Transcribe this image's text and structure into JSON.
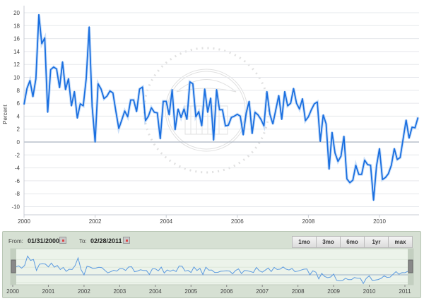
{
  "chart_data": {
    "type": "line",
    "ylabel": "Percent",
    "ylim": [
      -11,
      21
    ],
    "yticks": [
      -10,
      -8,
      -6,
      -4,
      -2,
      0,
      2,
      4,
      6,
      8,
      10,
      12,
      14,
      16,
      18,
      20
    ],
    "xticks": [
      "2000",
      "2002",
      "2004",
      "2006",
      "2008",
      "2010"
    ],
    "start": "2000-01",
    "frequency": "monthly",
    "series": [
      {
        "name": "Percent",
        "color": "#1a6fe0",
        "values": [
          5.8,
          8.3,
          9.5,
          7.0,
          9.8,
          19.7,
          15.2,
          16.1,
          4.6,
          11.2,
          11.6,
          11.3,
          8.4,
          12.4,
          8.1,
          9.8,
          5.6,
          7.8,
          3.7,
          5.9,
          5.6,
          9.8,
          17.8,
          5.5,
          0.0,
          9.0,
          8.2,
          6.7,
          7.1,
          7.9,
          7.6,
          4.8,
          2.1,
          3.4,
          4.8,
          3.9,
          6.5,
          6.5,
          4.7,
          8.2,
          8.5,
          3.3,
          4.0,
          5.3,
          4.6,
          4.5,
          0.5,
          6.3,
          6.3,
          4.2,
          8.1,
          1.9,
          5.1,
          3.8,
          5.1,
          3.5,
          9.3,
          9.0,
          3.9,
          4.7,
          2.5,
          8.2,
          4.6,
          6.8,
          0.3,
          8.1,
          5.0,
          5.0,
          2.5,
          2.6,
          3.8,
          4.0,
          4.3,
          4.0,
          1.1,
          4.5,
          6.3,
          1.3,
          4.6,
          4.2,
          3.5,
          2.5,
          7.8,
          4.3,
          2.8,
          5.0,
          7.2,
          3.5,
          7.8,
          5.6,
          6.0,
          8.3,
          6.0,
          5.1,
          6.7,
          3.3,
          3.9,
          5.0,
          5.9,
          6.2,
          0.1,
          4.2,
          2.8,
          -4.2,
          1.5,
          -1.7,
          -3.0,
          -2.2,
          0.9,
          -5.7,
          -6.3,
          -5.9,
          -3.6,
          -5.0,
          -5.0,
          -2.8,
          -3.5,
          -3.6,
          -9.0,
          -3.7,
          -1.0,
          -5.8,
          -5.5,
          -4.9,
          -3.6,
          -1.0,
          -2.7,
          -2.4,
          0.5,
          3.4,
          0.6,
          2.3,
          2.2,
          3.8
        ]
      }
    ]
  },
  "navigator": {
    "from_label": "From:",
    "from_value": "01/31/2000",
    "to_label": "To:",
    "to_value": "02/28/2011",
    "buttons": [
      "1mo",
      "3mo",
      "6mo",
      "1yr",
      "max"
    ],
    "xticks": [
      "2000",
      "2001",
      "2002",
      "2003",
      "2004",
      "2005",
      "2006",
      "2007",
      "2008",
      "2009",
      "2010",
      "2011"
    ]
  },
  "watermark": "BOARD OF GOVERNORS OF THE FEDERAL RESERVE SYSTEM"
}
